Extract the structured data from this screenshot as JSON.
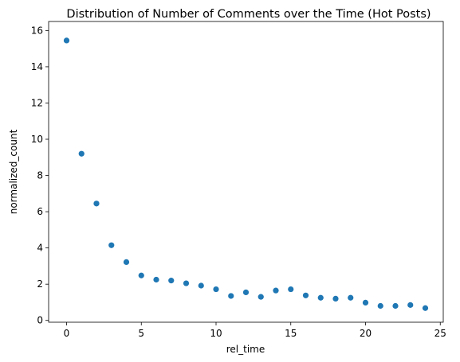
{
  "chart_data": {
    "type": "scatter",
    "title": "Distribution of Number of Comments over the Time (Hot Posts)",
    "xlabel": "rel_time",
    "ylabel": "normalized_count",
    "xlim": [
      -1.2,
      25.2
    ],
    "ylim": [
      -0.1,
      16.5
    ],
    "xticks": [
      0,
      5,
      10,
      15,
      20,
      25
    ],
    "yticks": [
      0,
      2,
      4,
      6,
      8,
      10,
      12,
      14,
      16
    ],
    "grid": false,
    "color": "#1f77b4",
    "x": [
      0,
      1,
      2,
      3,
      4,
      5,
      6,
      7,
      8,
      9,
      10,
      11,
      12,
      13,
      14,
      15,
      16,
      17,
      18,
      19,
      20,
      21,
      22,
      23,
      24
    ],
    "y": [
      15.45,
      9.2,
      6.45,
      4.15,
      3.22,
      2.48,
      2.25,
      2.2,
      2.05,
      1.92,
      1.72,
      1.35,
      1.55,
      1.3,
      1.65,
      1.72,
      1.38,
      1.25,
      1.2,
      1.25,
      0.98,
      0.8,
      0.8,
      0.85,
      0.68
    ]
  }
}
